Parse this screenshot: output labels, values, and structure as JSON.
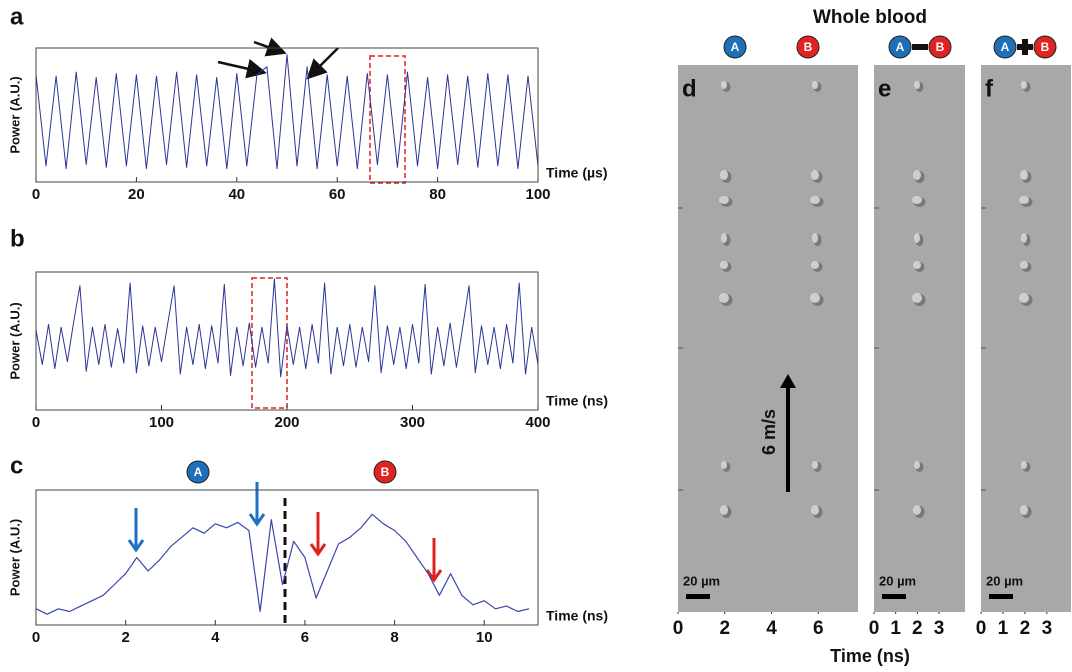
{
  "chart_data": [
    {
      "panel": "a",
      "type": "line",
      "ylabel": "Power (A.U.)",
      "xlabel": "Time (µs)",
      "xlim": [
        0,
        100
      ],
      "xticks": [
        0,
        20,
        40,
        60,
        80,
        100
      ],
      "ylim": [
        0,
        1
      ],
      "x": [
        0,
        2,
        4,
        6,
        8,
        10,
        12,
        14,
        16,
        18,
        20,
        22,
        24,
        26,
        28,
        30,
        32,
        34,
        36,
        38,
        40,
        42,
        44,
        46,
        48,
        50,
        52,
        54,
        56,
        58,
        60,
        62,
        64,
        66,
        68,
        70,
        72,
        74,
        76,
        78,
        80,
        82,
        84,
        86,
        88,
        90,
        92,
        94,
        96,
        98,
        100
      ],
      "series": [
        {
          "color": "#2b3594",
          "values": [
            0.8,
            0.12,
            0.79,
            0.1,
            0.82,
            0.13,
            0.78,
            0.11,
            0.81,
            0.12,
            0.8,
            0.1,
            0.79,
            0.13,
            0.82,
            0.11,
            0.8,
            0.12,
            0.78,
            0.1,
            0.81,
            0.12,
            0.8,
            0.86,
            0.1,
            0.95,
            0.12,
            0.86,
            0.1,
            0.8,
            0.12,
            0.79,
            0.1,
            0.81,
            0.13,
            0.8,
            0.11,
            0.82,
            0.12,
            0.78,
            0.1,
            0.8,
            0.13,
            0.79,
            0.11,
            0.81,
            0.12,
            0.8,
            0.1,
            0.79,
            0.12
          ]
        }
      ]
    },
    {
      "panel": "b",
      "type": "line",
      "ylabel": "Power (A.U.)",
      "xlabel": "Time (ns)",
      "xlim": [
        0,
        400
      ],
      "xticks": [
        0,
        100,
        200,
        300,
        400
      ],
      "ylim": [
        0,
        1
      ],
      "x": [
        0,
        5,
        10,
        15,
        20,
        25,
        30,
        35,
        40,
        45,
        50,
        55,
        60,
        65,
        70,
        75,
        80,
        85,
        90,
        95,
        100,
        105,
        110,
        115,
        120,
        125,
        130,
        135,
        140,
        145,
        150,
        155,
        160,
        165,
        170,
        175,
        180,
        185,
        190,
        195,
        200,
        205,
        210,
        215,
        220,
        225,
        230,
        235,
        240,
        245,
        250,
        255,
        260,
        265,
        270,
        275,
        280,
        285,
        290,
        295,
        300,
        305,
        310,
        315,
        320,
        325,
        330,
        335,
        340,
        345,
        350,
        355,
        360,
        365,
        370,
        375,
        380,
        385,
        390,
        395,
        400
      ],
      "series": [
        {
          "color": "#2b3594",
          "values": [
            0.58,
            0.33,
            0.62,
            0.3,
            0.6,
            0.35,
            0.64,
            0.9,
            0.28,
            0.6,
            0.33,
            0.62,
            0.31,
            0.59,
            0.34,
            0.92,
            0.27,
            0.61,
            0.32,
            0.6,
            0.35,
            0.63,
            0.9,
            0.26,
            0.6,
            0.33,
            0.62,
            0.3,
            0.61,
            0.34,
            0.91,
            0.25,
            0.6,
            0.32,
            0.63,
            0.31,
            0.6,
            0.34,
            0.95,
            0.24,
            0.61,
            0.33,
            0.6,
            0.3,
            0.62,
            0.34,
            0.92,
            0.26,
            0.6,
            0.32,
            0.62,
            0.31,
            0.6,
            0.35,
            0.9,
            0.27,
            0.61,
            0.33,
            0.6,
            0.3,
            0.62,
            0.34,
            0.91,
            0.26,
            0.6,
            0.32,
            0.63,
            0.31,
            0.6,
            0.9,
            0.27,
            0.61,
            0.33,
            0.6,
            0.3,
            0.62,
            0.34,
            0.92,
            0.26,
            0.6,
            0.33
          ]
        }
      ]
    },
    {
      "panel": "c",
      "type": "line",
      "ylabel": "Power (A.U.)",
      "xlabel": "Time (ns)",
      "xlim": [
        0,
        11.2
      ],
      "xticks": [
        0,
        2,
        4,
        6,
        8,
        10
      ],
      "ylim": [
        0,
        1
      ],
      "annotations": [
        "A",
        "B"
      ],
      "x": [
        0,
        0.25,
        0.5,
        0.75,
        1,
        1.25,
        1.5,
        1.75,
        2,
        2.25,
        2.5,
        2.75,
        3,
        3.25,
        3.5,
        3.75,
        4,
        4.25,
        4.5,
        4.75,
        5,
        5.25,
        5.5,
        5.75,
        6,
        6.25,
        6.5,
        6.75,
        7,
        7.25,
        7.5,
        7.75,
        8,
        8.25,
        8.5,
        8.75,
        9,
        9.25,
        9.5,
        9.75,
        10,
        10.25,
        10.5,
        10.75,
        11
      ],
      "series": [
        {
          "color": "#3a46b0",
          "values": [
            0.12,
            0.08,
            0.12,
            0.1,
            0.14,
            0.18,
            0.22,
            0.3,
            0.38,
            0.5,
            0.4,
            0.48,
            0.58,
            0.65,
            0.72,
            0.68,
            0.75,
            0.72,
            0.76,
            0.7,
            0.1,
            0.78,
            0.3,
            0.62,
            0.5,
            0.2,
            0.4,
            0.6,
            0.65,
            0.72,
            0.82,
            0.75,
            0.7,
            0.62,
            0.5,
            0.38,
            0.22,
            0.38,
            0.22,
            0.15,
            0.18,
            0.12,
            0.14,
            0.1,
            0.12
          ]
        }
      ]
    },
    {
      "panel": "d",
      "type": "image",
      "title": "Whole blood",
      "xlabel": "Time (ns)",
      "xlim": [
        0,
        7.7
      ],
      "xticks": [
        0,
        2,
        4,
        6
      ],
      "annotations": [
        "A",
        "B"
      ],
      "scale_bar": "20 µm",
      "speed": "6 m/s"
    },
    {
      "panel": "e",
      "type": "image",
      "xlim": [
        0,
        4.2
      ],
      "xticks": [
        0,
        1,
        2,
        3
      ],
      "annotations": [
        "A",
        "B"
      ],
      "scale_bar": "20 µm"
    },
    {
      "panel": "f",
      "type": "image",
      "xlim": [
        0,
        4.1
      ],
      "xticks": [
        0,
        1,
        2,
        3
      ],
      "annotations": [
        "A",
        "B"
      ],
      "scale_bar": "20 µm"
    }
  ]
}
